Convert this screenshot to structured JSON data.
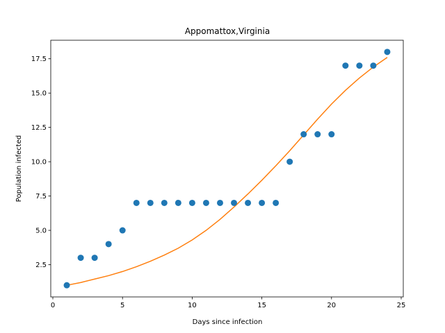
{
  "chart_data": {
    "type": "scatter",
    "title": "Appomattox,Virginia",
    "xlabel": "Days since infection",
    "ylabel": "Population infected",
    "xlim": [
      -0.15,
      25.15
    ],
    "ylim": [
      0.15,
      18.85
    ],
    "xticks": [
      0,
      5,
      10,
      15,
      20,
      25
    ],
    "yticks": [
      2.5,
      5.0,
      7.5,
      10.0,
      12.5,
      15.0,
      17.5
    ],
    "grid": false,
    "series": [
      {
        "kind": "scatter",
        "color": "#1f77b4",
        "x": [
          1,
          2,
          3,
          4,
          5,
          6,
          7,
          8,
          9,
          10,
          11,
          12,
          13,
          14,
          15,
          16,
          17,
          18,
          19,
          20,
          21,
          22,
          23,
          24
        ],
        "y": [
          1,
          3,
          3,
          4,
          5,
          7,
          7,
          7,
          7,
          7,
          7,
          7,
          7,
          7,
          7,
          7,
          10,
          12,
          12,
          12,
          17,
          17,
          17,
          18
        ]
      },
      {
        "kind": "line",
        "color": "#ff7f0e",
        "x": [
          1,
          2,
          3,
          4,
          5,
          6,
          7,
          8,
          9,
          10,
          11,
          12,
          13,
          14,
          15,
          16,
          17,
          18,
          19,
          20,
          21,
          22,
          23,
          24
        ],
        "y": [
          1.0,
          1.2,
          1.45,
          1.7,
          2.0,
          2.35,
          2.75,
          3.2,
          3.7,
          4.3,
          5.0,
          5.8,
          6.7,
          7.65,
          8.65,
          9.7,
          10.8,
          11.95,
          13.1,
          14.2,
          15.2,
          16.1,
          16.9,
          17.6
        ]
      }
    ]
  }
}
